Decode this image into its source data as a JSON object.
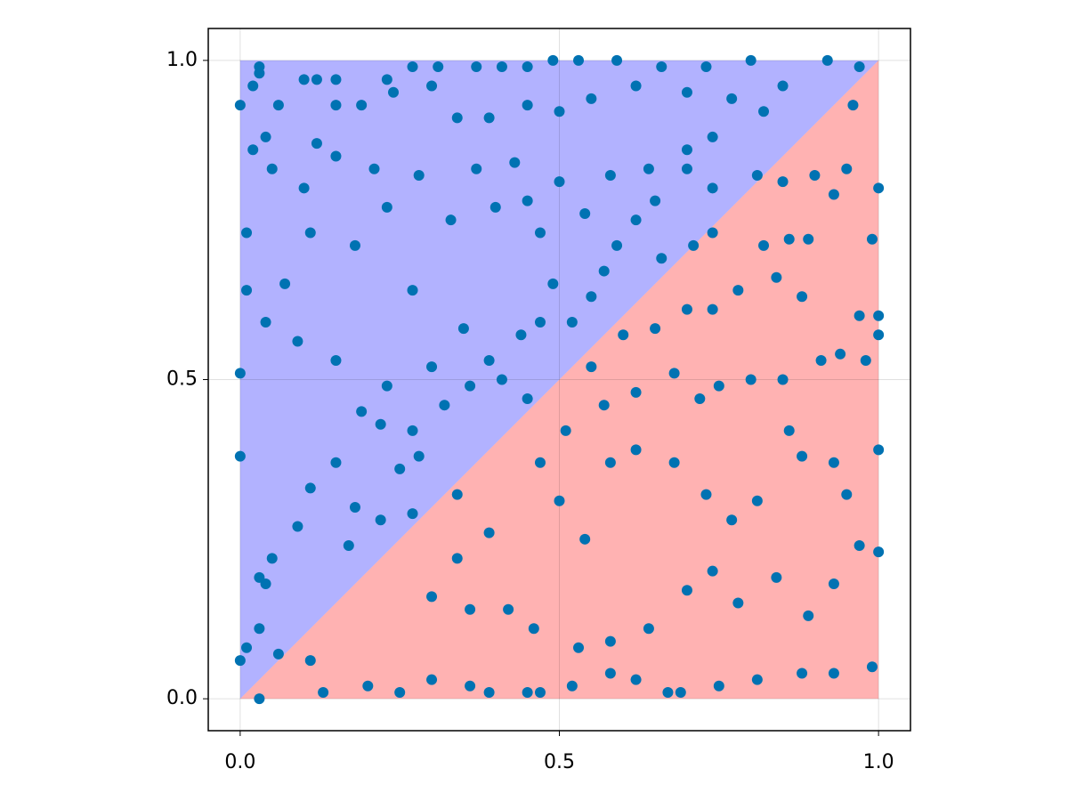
{
  "chart_data": {
    "type": "scatter",
    "color": "#0072b2",
    "fills": [
      {
        "color": "rgba(0,0,255,0.3)",
        "x": [
          0,
          0,
          1
        ],
        "y": [
          0,
          1,
          1
        ]
      },
      {
        "color": "rgba(255,0,0,0.3)",
        "x": [
          0,
          1,
          1
        ],
        "y": [
          0,
          0,
          1
        ]
      }
    ],
    "x": [
      0.0,
      0.03,
      0.03,
      0.02,
      0.02,
      0.01,
      0.01,
      0.0,
      0.0,
      0.01,
      0.0,
      0.03,
      0.1,
      0.12,
      0.12,
      0.15,
      0.19,
      0.23,
      0.27,
      0.31,
      0.37,
      0.41,
      0.45,
      0.49,
      0.53,
      0.59,
      0.66,
      0.73,
      0.8,
      0.92,
      0.97,
      0.96,
      1.0,
      0.99,
      1.0,
      1.0,
      1.0,
      1.0,
      0.99,
      0.93,
      0.88,
      0.81,
      0.75,
      0.69,
      0.67,
      0.62,
      0.58,
      0.52,
      0.47,
      0.45,
      0.39,
      0.36,
      0.3,
      0.25,
      0.2,
      0.13,
      0.11,
      0.06,
      0.03,
      0.04,
      0.03,
      0.05,
      0.09,
      0.11,
      0.15,
      0.18,
      0.19,
      0.22,
      0.25,
      0.28,
      0.32,
      0.3,
      0.35,
      0.36,
      0.39,
      0.41,
      0.45,
      0.44,
      0.47,
      0.49,
      0.47,
      0.4,
      0.33,
      0.27,
      0.23,
      0.18,
      0.11,
      0.07,
      0.04,
      0.09,
      0.15,
      0.23,
      0.27,
      0.17,
      0.22,
      0.27,
      0.34,
      0.39,
      0.34,
      0.3,
      0.36,
      0.42,
      0.46,
      0.53,
      0.58,
      0.64,
      0.7,
      0.74,
      0.78,
      0.84,
      0.89,
      0.93,
      0.97,
      0.95,
      0.93,
      0.88,
      0.86,
      0.81,
      0.77,
      0.73,
      0.68,
      0.62,
      0.58,
      0.54,
      0.5,
      0.47,
      0.51,
      0.57,
      0.62,
      0.68,
      0.72,
      0.75,
      0.8,
      0.85,
      0.91,
      0.94,
      0.98,
      0.97,
      0.88,
      0.84,
      0.78,
      0.74,
      0.7,
      0.65,
      0.6,
      0.55,
      0.66,
      0.71,
      0.74,
      0.82,
      0.86,
      0.89,
      0.93,
      0.95,
      0.9,
      0.85,
      0.81,
      0.74,
      0.7,
      0.65,
      0.62,
      0.59,
      0.57,
      0.55,
      0.52,
      0.54,
      0.58,
      0.64,
      0.7,
      0.74,
      0.82,
      0.85,
      0.77,
      0.7,
      0.62,
      0.55,
      0.5,
      0.45,
      0.39,
      0.34,
      0.3,
      0.24,
      0.15,
      0.06,
      0.04,
      0.05,
      0.1,
      0.15,
      0.21,
      0.28,
      0.37,
      0.43,
      0.5,
      0.45
    ],
    "values": [
      0.93,
      0.99,
      0.98,
      0.96,
      0.86,
      0.73,
      0.64,
      0.51,
      0.38,
      0.08,
      0.06,
      0.0,
      0.97,
      0.97,
      0.87,
      0.97,
      0.93,
      0.97,
      0.99,
      0.99,
      0.99,
      0.99,
      0.99,
      1.0,
      1.0,
      1.0,
      0.99,
      0.99,
      1.0,
      1.0,
      0.99,
      0.93,
      0.8,
      0.72,
      0.6,
      0.57,
      0.39,
      0.23,
      0.05,
      0.04,
      0.04,
      0.03,
      0.02,
      0.01,
      0.01,
      0.03,
      0.04,
      0.02,
      0.01,
      0.01,
      0.01,
      0.02,
      0.03,
      0.01,
      0.02,
      0.01,
      0.06,
      0.07,
      0.11,
      0.18,
      0.19,
      0.22,
      0.27,
      0.33,
      0.37,
      0.3,
      0.45,
      0.43,
      0.36,
      0.38,
      0.46,
      0.52,
      0.58,
      0.49,
      0.53,
      0.5,
      0.47,
      0.57,
      0.59,
      0.65,
      0.73,
      0.77,
      0.75,
      0.64,
      0.77,
      0.71,
      0.73,
      0.65,
      0.59,
      0.56,
      0.53,
      0.49,
      0.42,
      0.24,
      0.28,
      0.29,
      0.32,
      0.26,
      0.22,
      0.16,
      0.14,
      0.14,
      0.11,
      0.08,
      0.09,
      0.11,
      0.17,
      0.2,
      0.15,
      0.19,
      0.13,
      0.18,
      0.24,
      0.32,
      0.37,
      0.38,
      0.42,
      0.31,
      0.28,
      0.32,
      0.37,
      0.39,
      0.37,
      0.25,
      0.31,
      0.37,
      0.42,
      0.46,
      0.48,
      0.51,
      0.47,
      0.49,
      0.5,
      0.5,
      0.53,
      0.54,
      0.53,
      0.6,
      0.63,
      0.66,
      0.64,
      0.61,
      0.61,
      0.58,
      0.57,
      0.52,
      0.69,
      0.71,
      0.73,
      0.71,
      0.72,
      0.72,
      0.79,
      0.83,
      0.82,
      0.81,
      0.82,
      0.8,
      0.83,
      0.78,
      0.75,
      0.71,
      0.67,
      0.63,
      0.59,
      0.76,
      0.82,
      0.83,
      0.86,
      0.88,
      0.92,
      0.96,
      0.94,
      0.95,
      0.96,
      0.94,
      0.92,
      0.93,
      0.91,
      0.91,
      0.96,
      0.95,
      0.93,
      0.93,
      0.88,
      0.83,
      0.8,
      0.85,
      0.83,
      0.82,
      0.83,
      0.84,
      0.81,
      0.78
    ],
    "xlim": [
      -0.05,
      1.05
    ],
    "ylim": [
      -0.05,
      1.05
    ],
    "xticks": [
      {
        "value": 0,
        "label": "0.0"
      },
      {
        "value": 0.5,
        "label": "0.5"
      },
      {
        "value": 1,
        "label": "1.0"
      }
    ],
    "yticks": [
      {
        "value": 0,
        "label": "0.0"
      },
      {
        "value": 0.5,
        "label": "0.5"
      },
      {
        "value": 1,
        "label": "1.0"
      }
    ],
    "grid": true
  }
}
